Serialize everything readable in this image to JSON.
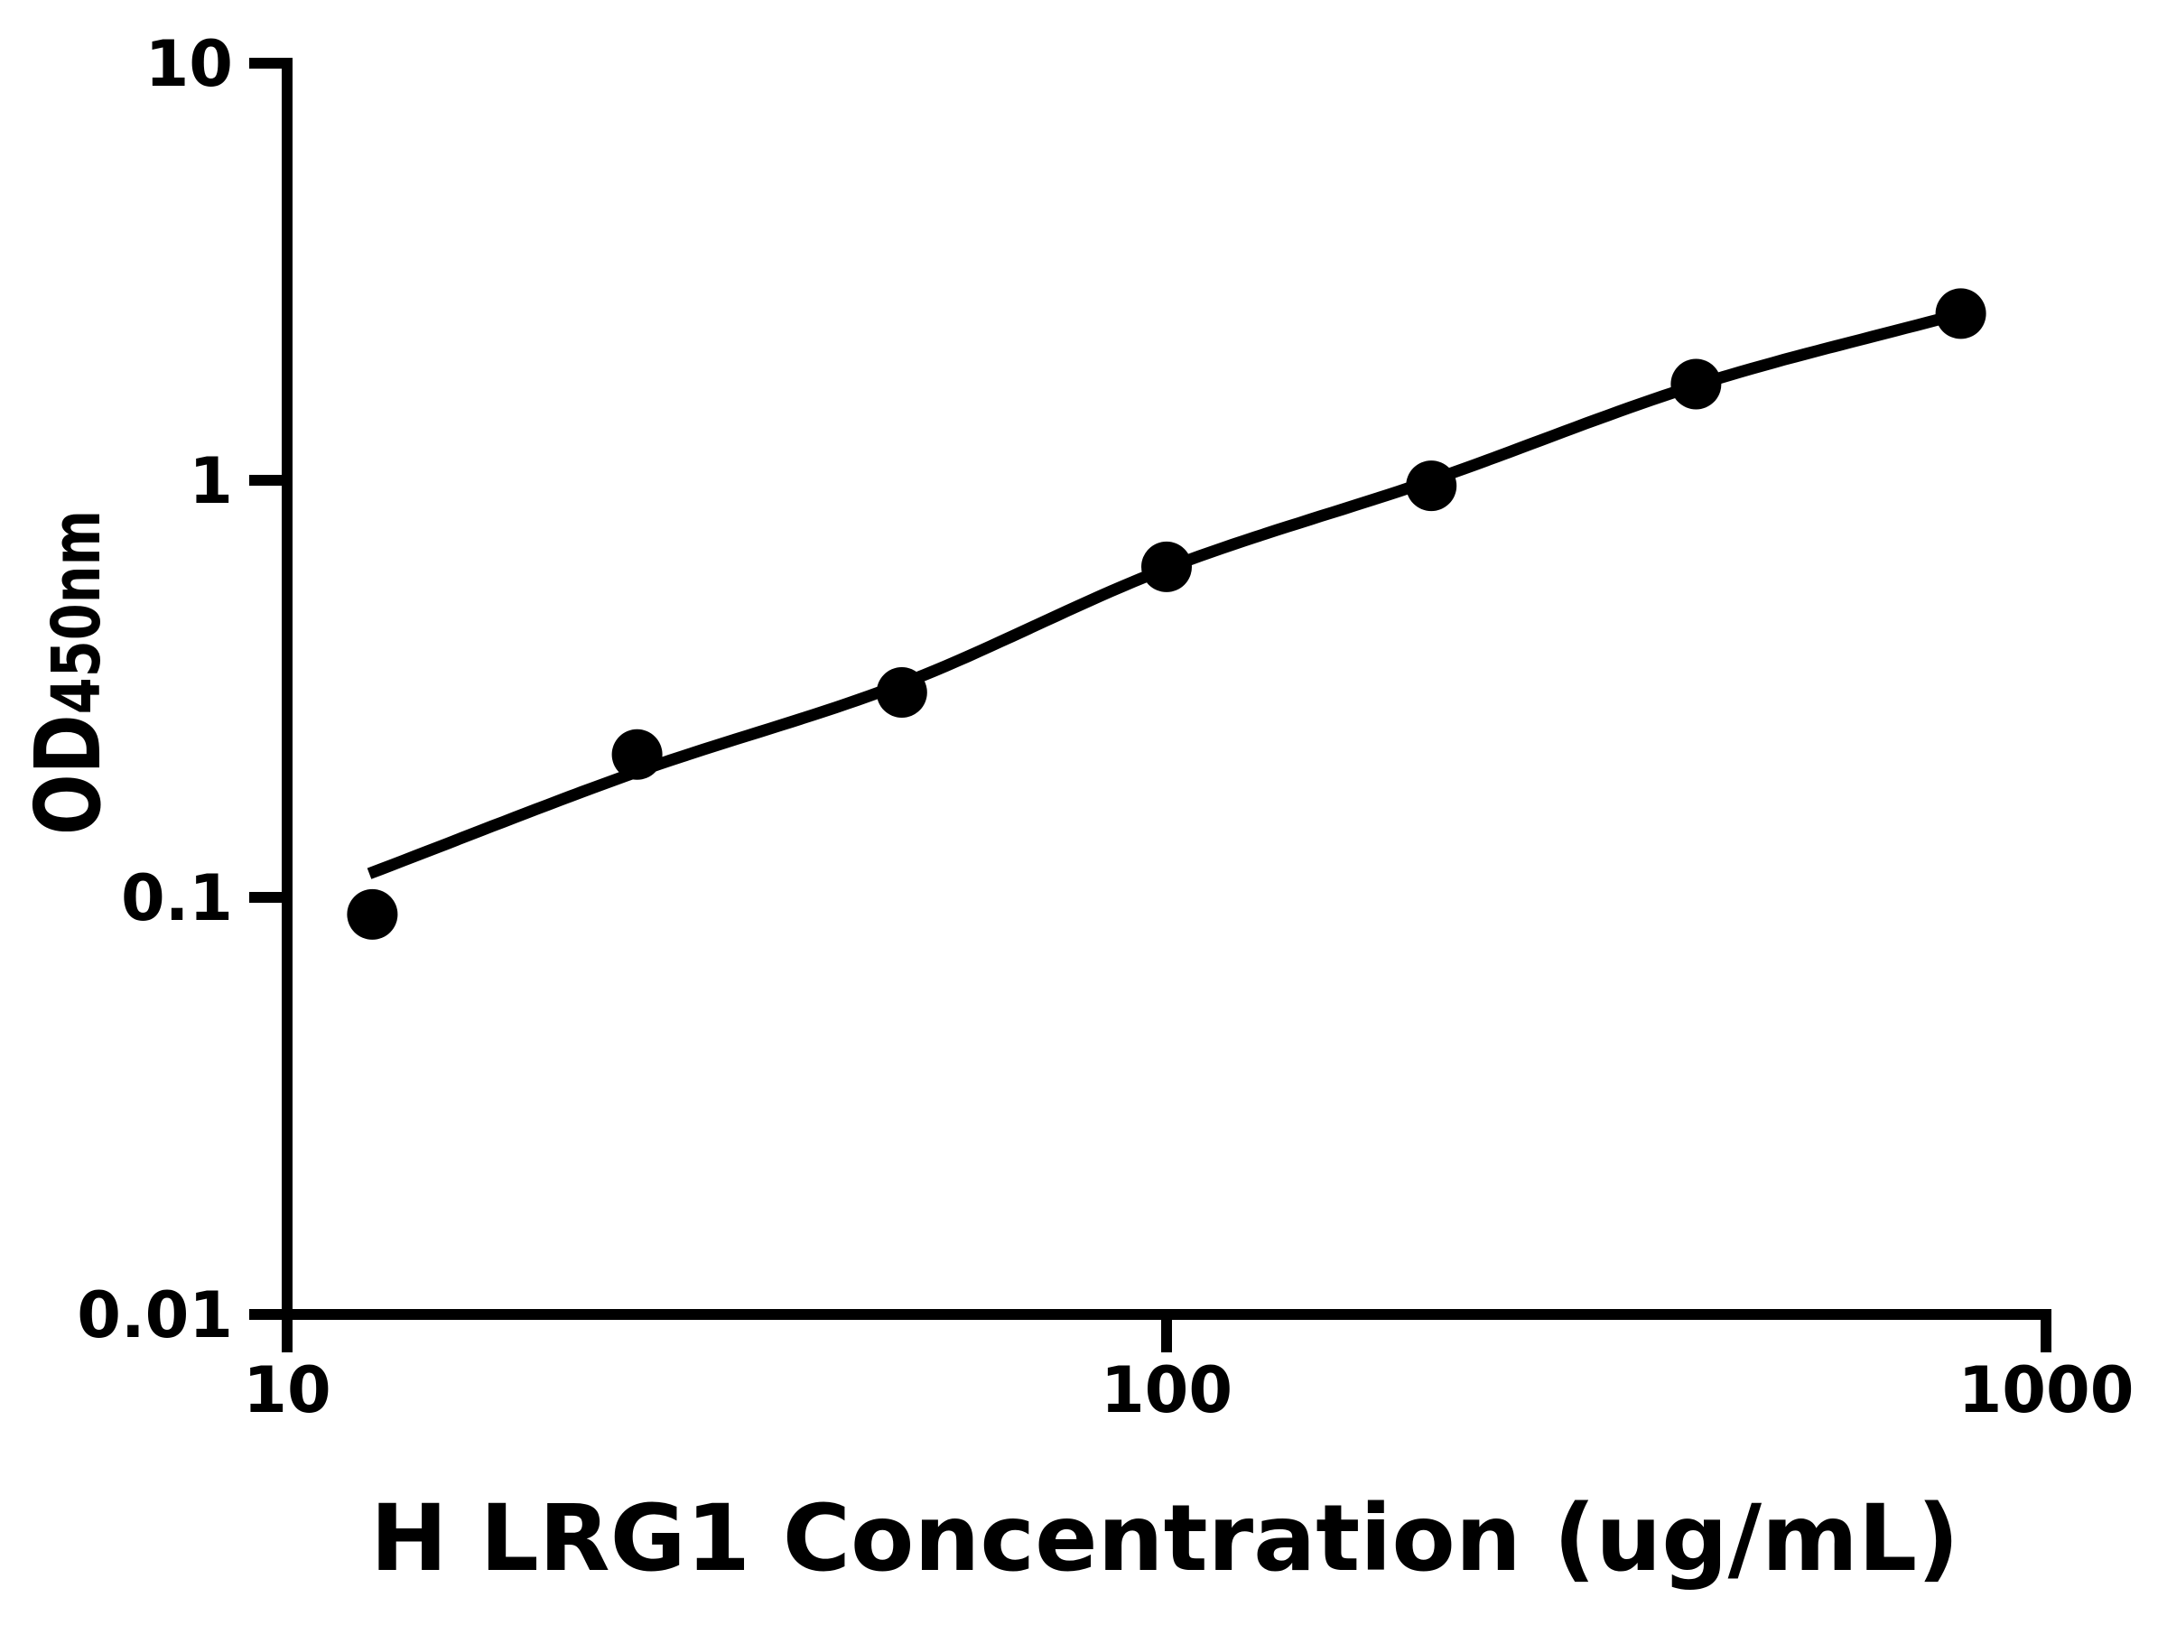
{
  "figure": {
    "background_color": "#ffffff",
    "ink_color": "#000000"
  },
  "chart_data": {
    "type": "scatter",
    "subtype": "elisa-standard-curve",
    "title": "",
    "xlabel": "H LRG1 Concentration (ug/mL)",
    "ylabel": "OD",
    "ylabel_sub": "450nm",
    "x_scale": "log10",
    "y_scale": "log10",
    "xlim": [
      10,
      1000
    ],
    "ylim": [
      0.01,
      10
    ],
    "grid": false,
    "legend": false,
    "x_ticks": [
      {
        "value": 10,
        "label": "10"
      },
      {
        "value": 100,
        "label": "100"
      },
      {
        "value": 1000,
        "label": "1000"
      }
    ],
    "y_ticks": [
      {
        "value": 10,
        "label": "10"
      },
      {
        "value": 1,
        "label": "1"
      },
      {
        "value": 0.1,
        "label": "0.1"
      },
      {
        "value": 0.01,
        "label": "0.01"
      }
    ],
    "series": [
      {
        "name": "standard curve data points",
        "marker": "filled-circle",
        "marker_color": "#000000",
        "points": [
          {
            "x": 12.5,
            "y": 0.091
          },
          {
            "x": 25,
            "y": 0.22
          },
          {
            "x": 50,
            "y": 0.31
          },
          {
            "x": 100,
            "y": 0.62
          },
          {
            "x": 200,
            "y": 0.97
          },
          {
            "x": 400,
            "y": 1.7
          },
          {
            "x": 800,
            "y": 2.51
          }
        ]
      }
    ],
    "fit_curve": {
      "name": "fitted standard curve",
      "color": "#000000",
      "x_range": [
        12.4,
        800
      ],
      "anchors": [
        {
          "x": 12.4,
          "y": 0.114
        },
        {
          "x": 25,
          "y": 0.2
        },
        {
          "x": 50,
          "y": 0.325
        },
        {
          "x": 100,
          "y": 0.615
        },
        {
          "x": 200,
          "y": 1.0
        },
        {
          "x": 400,
          "y": 1.69
        },
        {
          "x": 800,
          "y": 2.51
        }
      ]
    }
  }
}
